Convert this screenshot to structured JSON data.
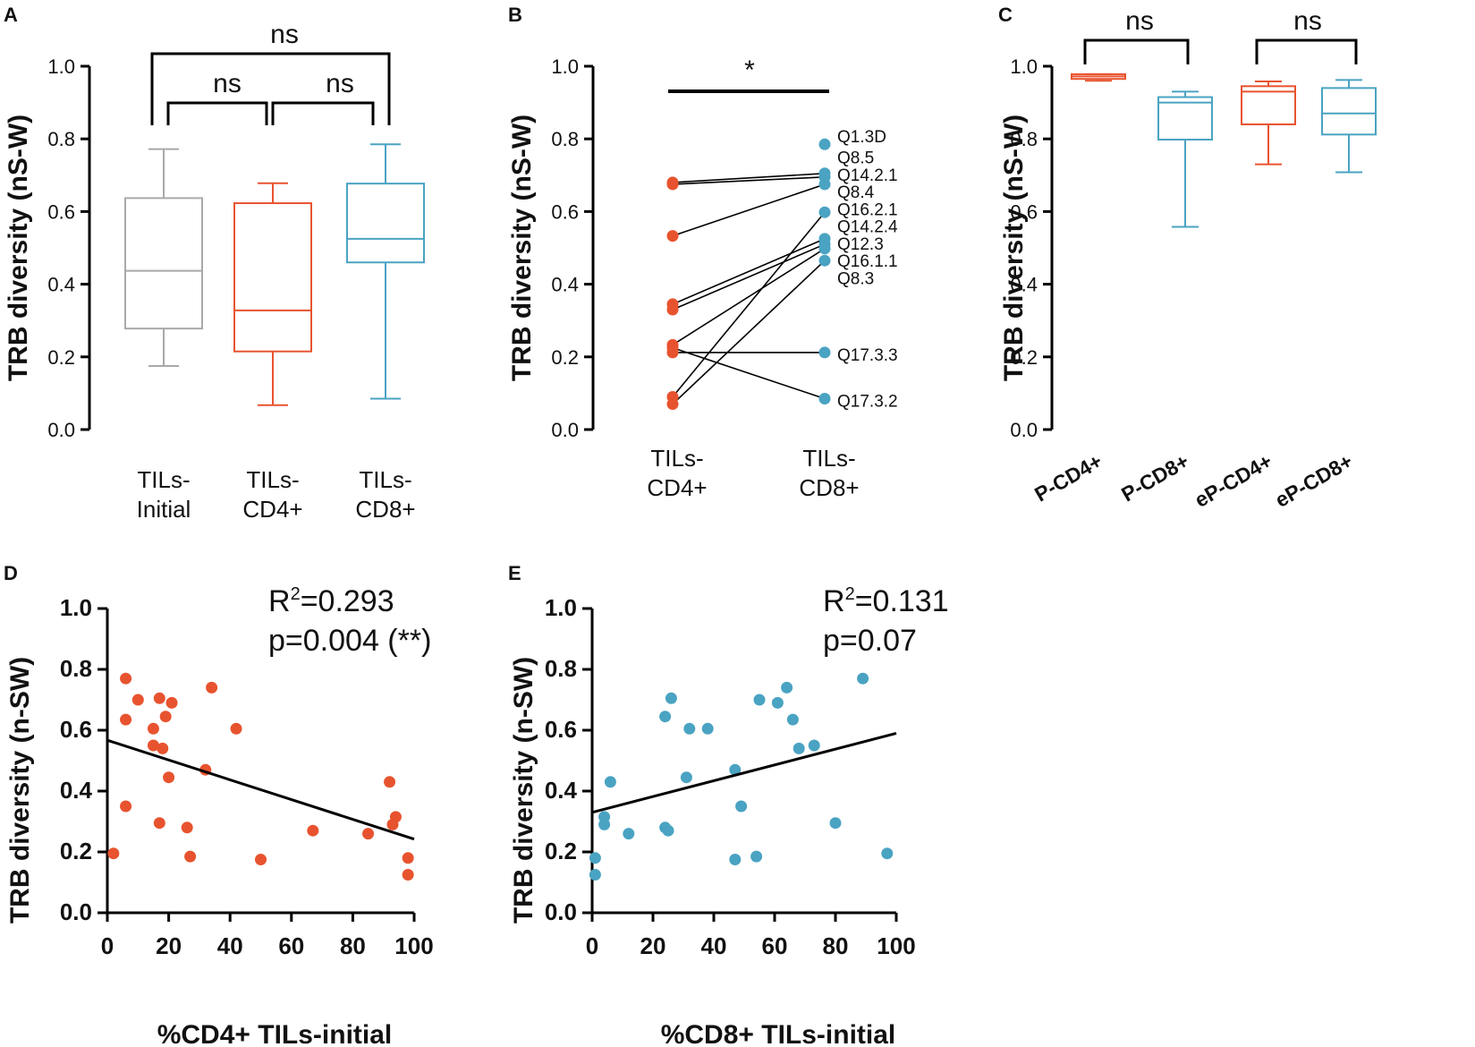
{
  "colors": {
    "initial": "#a9a9a9",
    "cd4": "#e8532f",
    "cd8": "#4aa3c2",
    "axis": "#000000"
  },
  "chart_data": [
    {
      "id": "A",
      "panel_label": "A",
      "type": "box",
      "ylabel": "TRB diversity (nS-W)",
      "ylim": [
        0,
        1
      ],
      "yticks": [
        "0.0",
        "0.2",
        "0.4",
        "0.6",
        "0.8",
        "1.0"
      ],
      "categories": [
        [
          "TILs-",
          "Initial"
        ],
        [
          "TILs-",
          "CD4+"
        ],
        [
          "TILs-",
          "CD8+"
        ]
      ],
      "boxes": [
        {
          "group": "TILs-Initial",
          "color": "#a9a9a9",
          "min": 0.175,
          "q1": 0.278,
          "median": 0.437,
          "q3": 0.637,
          "max": 0.772
        },
        {
          "group": "TILs-CD4+",
          "color": "#e8532f",
          "min": 0.067,
          "q1": 0.215,
          "median": 0.328,
          "q3": 0.623,
          "max": 0.678
        },
        {
          "group": "TILs-CD8+",
          "color": "#4aa3c2",
          "min": 0.085,
          "q1": 0.46,
          "median": 0.525,
          "q3": 0.677,
          "max": 0.785
        }
      ],
      "significance": [
        {
          "from": 0,
          "to": 2,
          "label": "ns"
        },
        {
          "from": 0,
          "to": 1,
          "label": "ns"
        },
        {
          "from": 1,
          "to": 2,
          "label": "ns"
        }
      ]
    },
    {
      "id": "B",
      "panel_label": "B",
      "type": "paired",
      "ylabel": "TRB diversity (nS-W)",
      "ylim": [
        0,
        1
      ],
      "yticks": [
        "0.0",
        "0.2",
        "0.4",
        "0.6",
        "0.8",
        "1.0"
      ],
      "categories": [
        [
          "TILs-",
          "CD4+"
        ],
        [
          "TILs-",
          "CD8+"
        ]
      ],
      "significance_label": "*",
      "pairs": [
        {
          "cd4": 0.68,
          "cd8": 0.705
        },
        {
          "cd4": 0.675,
          "cd8": 0.695
        },
        {
          "cd4": 0.533,
          "cd8": 0.675
        },
        {
          "cd4": 0.345,
          "cd8": 0.525
        },
        {
          "cd4": 0.33,
          "cd8": 0.51
        },
        {
          "cd4": 0.233,
          "cd8": 0.498
        },
        {
          "cd4": 0.212,
          "cd8": 0.212
        },
        {
          "cd4": 0.225,
          "cd8": 0.085
        },
        {
          "cd4": 0.09,
          "cd8": 0.598
        },
        {
          "cd4": 0.07,
          "cd8": 0.465
        }
      ],
      "cd8_only_points": [
        0.785
      ],
      "sample_labels": [
        "Q1.3D",
        "Q8.5",
        "Q14.2.1",
        "Q8.4",
        "Q16.2.1",
        "Q14.2.4",
        "Q12.3",
        "Q16.1.1",
        "Q8.3",
        "Q17.3.3",
        "Q17.3.2"
      ],
      "sample_label_values": [
        0.808,
        0.75,
        0.702,
        0.655,
        0.607,
        0.56,
        0.512,
        0.465,
        0.418,
        0.207,
        0.08
      ]
    },
    {
      "id": "C",
      "panel_label": "C",
      "type": "box",
      "ylabel": "TRB diversity (nS-W)",
      "ylim": [
        0,
        1
      ],
      "yticks": [
        "0.0",
        "0.2",
        "0.4",
        "0.6",
        "0.8",
        "1.0"
      ],
      "categories": [
        "P-CD4+",
        "P-CD8+",
        "eP-CD4+",
        "eP-CD8+"
      ],
      "boxes": [
        {
          "group": "P-CD4+",
          "color": "#e8532f",
          "min": 0.96,
          "q1": 0.965,
          "median": 0.972,
          "q3": 0.978,
          "max": 0.978
        },
        {
          "group": "P-CD8+",
          "color": "#4aa3c2",
          "min": 0.558,
          "q1": 0.798,
          "median": 0.9,
          "q3": 0.915,
          "max": 0.93
        },
        {
          "group": "eP-CD4+",
          "color": "#e8532f",
          "min": 0.73,
          "q1": 0.84,
          "median": 0.93,
          "q3": 0.945,
          "max": 0.958
        },
        {
          "group": "eP-CD8+",
          "color": "#4aa3c2",
          "min": 0.708,
          "q1": 0.812,
          "median": 0.87,
          "q3": 0.94,
          "max": 0.962
        }
      ],
      "significance": [
        {
          "from": 0,
          "to": 1,
          "label": "ns"
        },
        {
          "from": 2,
          "to": 3,
          "label": "ns"
        }
      ]
    },
    {
      "id": "D",
      "panel_label": "D",
      "type": "scatter",
      "xlabel": "%CD4+ TILs-initial",
      "ylabel": "TRB diversity (n-SW)",
      "xlim": [
        0,
        100
      ],
      "ylim": [
        0,
        1
      ],
      "xticks": [
        "0",
        "20",
        "40",
        "60",
        "80",
        "100"
      ],
      "yticks": [
        "0.0",
        "0.2",
        "0.4",
        "0.6",
        "0.8",
        "1.0"
      ],
      "color": "#e8532f",
      "points": [
        [
          2,
          0.195
        ],
        [
          6,
          0.77
        ],
        [
          6,
          0.635
        ],
        [
          6,
          0.35
        ],
        [
          10,
          0.7
        ],
        [
          15,
          0.605
        ],
        [
          15,
          0.55
        ],
        [
          17,
          0.705
        ],
        [
          17,
          0.295
        ],
        [
          18,
          0.54
        ],
        [
          19,
          0.645
        ],
        [
          20,
          0.445
        ],
        [
          21,
          0.69
        ],
        [
          26,
          0.28
        ],
        [
          27,
          0.185
        ],
        [
          32,
          0.47
        ],
        [
          34,
          0.74
        ],
        [
          42,
          0.605
        ],
        [
          50,
          0.175
        ],
        [
          67,
          0.27
        ],
        [
          85,
          0.26
        ],
        [
          92,
          0.43
        ],
        [
          93,
          0.29
        ],
        [
          94,
          0.315
        ],
        [
          98,
          0.18
        ],
        [
          98,
          0.125
        ]
      ],
      "fit": {
        "x": [
          0,
          100
        ],
        "y": [
          0.567,
          0.242
        ]
      },
      "stats": {
        "r2_prefix": "R",
        "r2_sup": "2",
        "r2_value": "=0.293",
        "p": "p=0.004 (**)"
      }
    },
    {
      "id": "E",
      "panel_label": "E",
      "type": "scatter",
      "xlabel": "%CD8+ TILs-initial",
      "ylabel": "TRB diversity (n-SW)",
      "xlim": [
        0,
        100
      ],
      "ylim": [
        0,
        1
      ],
      "xticks": [
        "0",
        "20",
        "40",
        "60",
        "80",
        "100"
      ],
      "yticks": [
        "0.0",
        "0.2",
        "0.4",
        "0.6",
        "0.8",
        "1.0"
      ],
      "color": "#4aa3c2",
      "points": [
        [
          1,
          0.18
        ],
        [
          1,
          0.125
        ],
        [
          4,
          0.315
        ],
        [
          4,
          0.29
        ],
        [
          6,
          0.43
        ],
        [
          12,
          0.26
        ],
        [
          24,
          0.645
        ],
        [
          24,
          0.28
        ],
        [
          25,
          0.27
        ],
        [
          26,
          0.705
        ],
        [
          32,
          0.605
        ],
        [
          31,
          0.445
        ],
        [
          38,
          0.605
        ],
        [
          47,
          0.47
        ],
        [
          47,
          0.175
        ],
        [
          49,
          0.35
        ],
        [
          54,
          0.185
        ],
        [
          55,
          0.7
        ],
        [
          61,
          0.69
        ],
        [
          64,
          0.74
        ],
        [
          66,
          0.635
        ],
        [
          68,
          0.54
        ],
        [
          73,
          0.55
        ],
        [
          80,
          0.295
        ],
        [
          89,
          0.77
        ],
        [
          97,
          0.195
        ]
      ],
      "fit": {
        "x": [
          0,
          100
        ],
        "y": [
          0.33,
          0.59
        ]
      },
      "stats": {
        "r2_prefix": "R",
        "r2_sup": "2",
        "r2_value": "=0.131",
        "p": "p=0.07"
      }
    }
  ]
}
